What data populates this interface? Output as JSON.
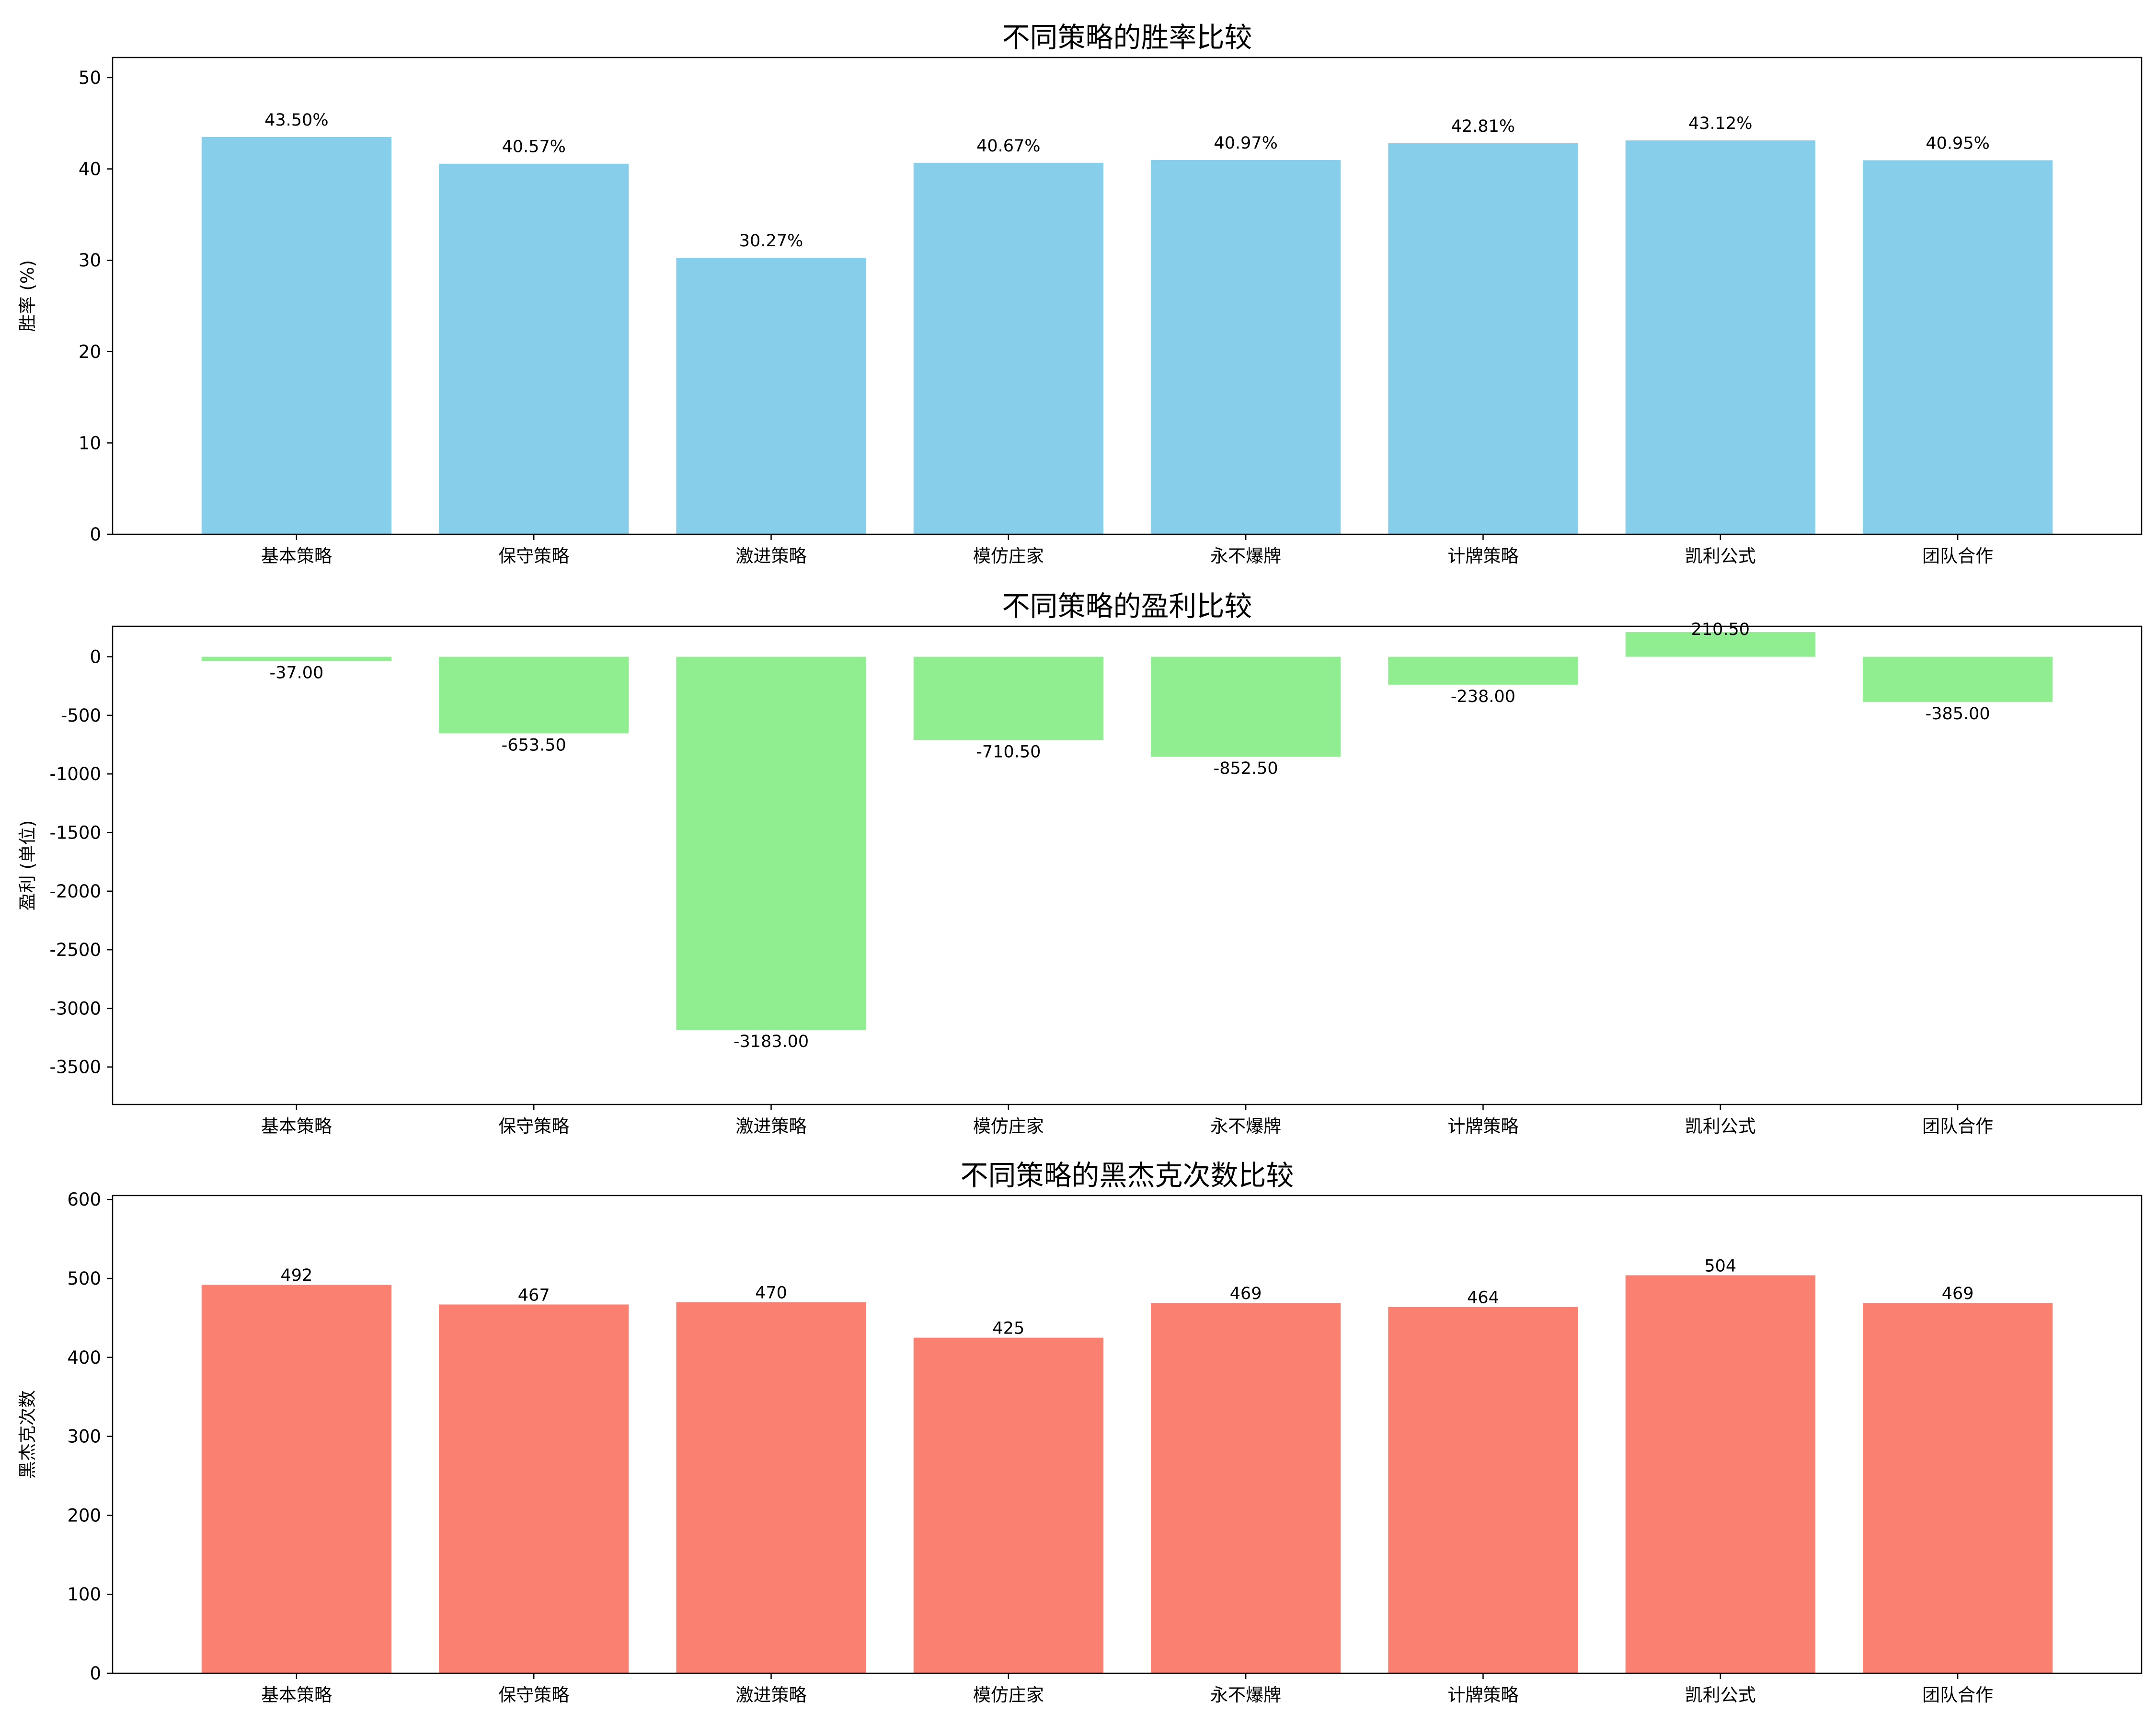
{
  "chart_data": [
    {
      "type": "bar",
      "title": "不同策略的胜率比较",
      "xlabel": "",
      "ylabel": "胜率 (%)",
      "categories": [
        "基本策略",
        "保守策略",
        "激进策略",
        "模仿庄家",
        "永不爆牌",
        "计牌策略",
        "凯利公式",
        "团队合作"
      ],
      "values": [
        43.5,
        40.57,
        30.27,
        40.67,
        40.97,
        42.81,
        43.12,
        40.95
      ],
      "value_labels": [
        "43.50%",
        "40.57%",
        "30.27%",
        "40.67%",
        "40.97%",
        "42.81%",
        "43.12%",
        "40.95%"
      ],
      "ylim": [
        0,
        52.2
      ],
      "yticks": [
        0,
        10,
        20,
        30,
        40,
        50
      ],
      "grid": false,
      "color": "#87CEEB"
    },
    {
      "type": "bar",
      "title": "不同策略的盈利比较",
      "xlabel": "",
      "ylabel": "盈利 (单位)",
      "categories": [
        "基本策略",
        "保守策略",
        "激进策略",
        "模仿庄家",
        "永不爆牌",
        "计牌策略",
        "凯利公式",
        "团队合作"
      ],
      "values": [
        -37.0,
        -653.5,
        -3183.0,
        -710.5,
        -852.5,
        -238.0,
        210.5,
        -385.0
      ],
      "value_labels": [
        "-37.00",
        "-653.50",
        "-3183.00",
        "-710.50",
        "-852.50",
        "-238.00",
        "210.50",
        "-385.00"
      ],
      "ylim": [
        -3820,
        260
      ],
      "yticks": [
        0,
        -500,
        -1000,
        -1500,
        -2000,
        -2500,
        -3000,
        -3500
      ],
      "grid": false,
      "color": "#90EE90"
    },
    {
      "type": "bar",
      "title": "不同策略的黑杰克次数比较",
      "xlabel": "",
      "ylabel": "黑杰克次数",
      "categories": [
        "基本策略",
        "保守策略",
        "激进策略",
        "模仿庄家",
        "永不爆牌",
        "计牌策略",
        "凯利公式",
        "团队合作"
      ],
      "values": [
        492,
        467,
        470,
        425,
        469,
        464,
        504,
        469
      ],
      "value_labels": [
        "492",
        "467",
        "470",
        "425",
        "469",
        "464",
        "504",
        "469"
      ],
      "ylim": [
        0,
        605
      ],
      "yticks": [
        0,
        100,
        200,
        300,
        400,
        500,
        600
      ],
      "grid": false,
      "color": "#FA8072"
    }
  ]
}
